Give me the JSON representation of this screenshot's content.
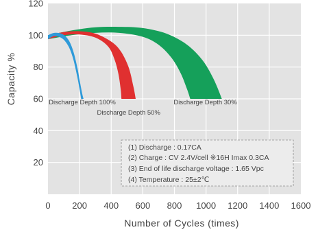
{
  "chart_data": {
    "type": "area",
    "title": "",
    "xlabel": "Number of Cycles (times)",
    "ylabel": "Capacity %",
    "xlim": [
      0,
      1600
    ],
    "ylim": [
      0,
      120
    ],
    "x_ticks": [
      0,
      200,
      400,
      600,
      800,
      1000,
      1200,
      1400,
      1600
    ],
    "y_ticks": [
      20,
      40,
      60,
      80,
      100,
      120
    ],
    "grid": true,
    "series": [
      {
        "name": "Discharge Depth 100%",
        "color": "#2e9ad9",
        "upper": {
          "x": [
            0,
            40,
            90,
            130,
            160,
            185,
            200,
            215,
            225
          ],
          "y": [
            100,
            101.5,
            100.8,
            97,
            90,
            80,
            72,
            64,
            60
          ]
        },
        "lower": {
          "x": [
            0,
            40,
            90,
            130,
            160,
            185,
            200,
            210
          ],
          "y": [
            97.5,
            99.5,
            98,
            93,
            85,
            74,
            66,
            60
          ]
        }
      },
      {
        "name": "Discharge Depth 50%",
        "color": "#e03030",
        "upper": {
          "x": [
            0,
            100,
            200,
            300,
            400,
            460,
            510,
            540,
            555
          ],
          "y": [
            100,
            102,
            102.5,
            101,
            96,
            90,
            80,
            68,
            60
          ]
        },
        "lower": {
          "x": [
            0,
            100,
            200,
            300,
            380,
            420,
            445,
            460,
            465
          ],
          "y": [
            97.5,
            100,
            100.5,
            98.5,
            93,
            85,
            76,
            66,
            60
          ]
        }
      },
      {
        "name": "Discharge Depth 30%",
        "color": "#15a05a",
        "upper": {
          "x": [
            0,
            150,
            300,
            450,
            600,
            750,
            880,
            980,
            1050,
            1100
          ],
          "y": [
            100,
            103,
            105,
            105.3,
            104.5,
            101,
            94,
            84,
            72,
            60
          ]
        },
        "lower": {
          "x": [
            0,
            150,
            300,
            450,
            600,
            700,
            780,
            840,
            880,
            900
          ],
          "y": [
            97.5,
            100,
            101.5,
            101.5,
            99,
            94,
            86,
            76,
            66,
            60
          ]
        }
      }
    ],
    "annotations": [
      {
        "text": "Discharge Depth 100%",
        "x": 5,
        "y": 56.5
      },
      {
        "text": "Discharge Depth 50%",
        "x": 310,
        "y": 50
      },
      {
        "text": "Discharge Depth 30%",
        "x": 795,
        "y": 56.5
      }
    ],
    "notes": [
      "(1) Discharge : 0.17CA",
      "(2) Charge : CV 2.4V/cell  ※16H Imax 0.3CA",
      "(3) End of life discharge voltage : 1.65 Vpc",
      "(4) Temperature : 25±2℃"
    ]
  },
  "colors": {
    "plot_background": "#e3e3e3",
    "grid": "#ffffff",
    "axis_text": "#444444",
    "notes_border": "#8a8a8a"
  }
}
